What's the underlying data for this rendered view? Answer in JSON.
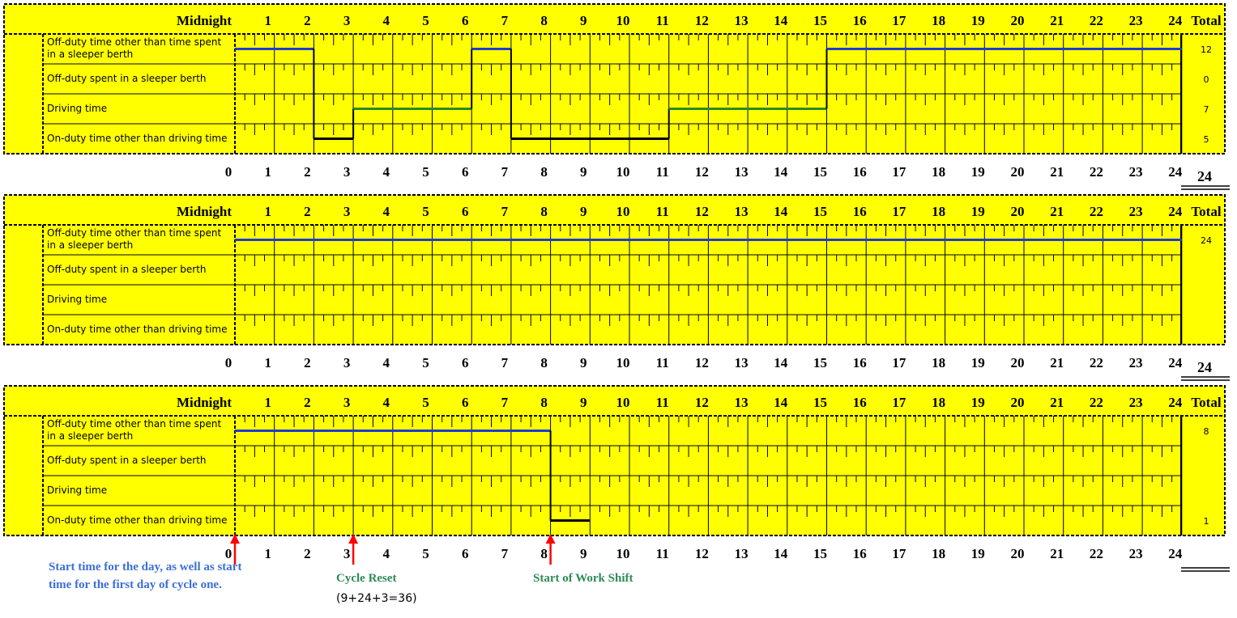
{
  "colors": {
    "background": "#ffff00",
    "off_duty_line": "#1f3bd1",
    "driving_line": "#2a8a2a",
    "on_duty_line": "#000000",
    "arrow": "#ff0000",
    "blue_text": "#3b6fd8",
    "green_text": "#2e8b57"
  },
  "header_label": "Midnight",
  "total_label": "Total",
  "row_labels": [
    [
      "Off-duty time other than time spent",
      "in a sleeper berth"
    ],
    [
      "Off-duty spent in a sleeper berth"
    ],
    [
      "Driving time"
    ],
    [
      "On-duty time other than driving time"
    ]
  ],
  "chart_data": [
    {
      "type": "line",
      "title": "",
      "x_range": [
        0,
        24
      ],
      "x_ticks": [
        "0",
        "1",
        "2",
        "3",
        "4",
        "5",
        "6",
        "7",
        "8",
        "9",
        "10",
        "11",
        "12",
        "13",
        "14",
        "15",
        "16",
        "17",
        "18",
        "19",
        "20",
        "21",
        "22",
        "23",
        "24"
      ],
      "segments": [
        {
          "row": 0,
          "start": 0,
          "end": 2
        },
        {
          "row": 3,
          "start": 2,
          "end": 3
        },
        {
          "row": 2,
          "start": 3,
          "end": 6
        },
        {
          "row": 0,
          "start": 6,
          "end": 7
        },
        {
          "row": 3,
          "start": 7,
          "end": 11
        },
        {
          "row": 2,
          "start": 11,
          "end": 15
        },
        {
          "row": 0,
          "start": 15,
          "end": 24
        }
      ],
      "totals": [
        "12",
        "0",
        "7",
        "5"
      ],
      "grand_total": "24"
    },
    {
      "type": "line",
      "title": "",
      "x_range": [
        0,
        24
      ],
      "x_ticks": [
        "0",
        "1",
        "2",
        "3",
        "4",
        "5",
        "6",
        "7",
        "8",
        "9",
        "10",
        "11",
        "12",
        "13",
        "14",
        "15",
        "16",
        "17",
        "18",
        "19",
        "20",
        "21",
        "22",
        "23",
        "24"
      ],
      "segments": [
        {
          "row": 0,
          "start": 0,
          "end": 24
        }
      ],
      "totals": [
        "24",
        "",
        "",
        ""
      ],
      "grand_total": "24"
    },
    {
      "type": "line",
      "title": "",
      "x_range": [
        0,
        24
      ],
      "x_ticks": [
        "0",
        "1",
        "2",
        "3",
        "4",
        "5",
        "6",
        "7",
        "8",
        "9",
        "10",
        "11",
        "12",
        "13",
        "14",
        "15",
        "16",
        "17",
        "18",
        "19",
        "20",
        "21",
        "22",
        "23",
        "24"
      ],
      "segments": [
        {
          "row": 0,
          "start": 0,
          "end": 8
        },
        {
          "row": 3,
          "start": 8,
          "end": 9
        }
      ],
      "totals": [
        "8",
        "",
        "",
        "1"
      ],
      "grand_total": ""
    }
  ],
  "annotations": [
    {
      "name": "start-time-annotation",
      "at_hour": 0,
      "color": "blue",
      "lines": [
        "Start time for the day, as well as start",
        "time for the first day of cycle one."
      ]
    },
    {
      "name": "cycle-reset-annotation",
      "at_hour": 3,
      "color": "green",
      "lines": [
        "Cycle Reset"
      ],
      "sub": "(9+24+3=36)"
    },
    {
      "name": "work-shift-annotation",
      "at_hour": 8,
      "color": "green",
      "lines": [
        "Start of Work Shift"
      ]
    }
  ]
}
